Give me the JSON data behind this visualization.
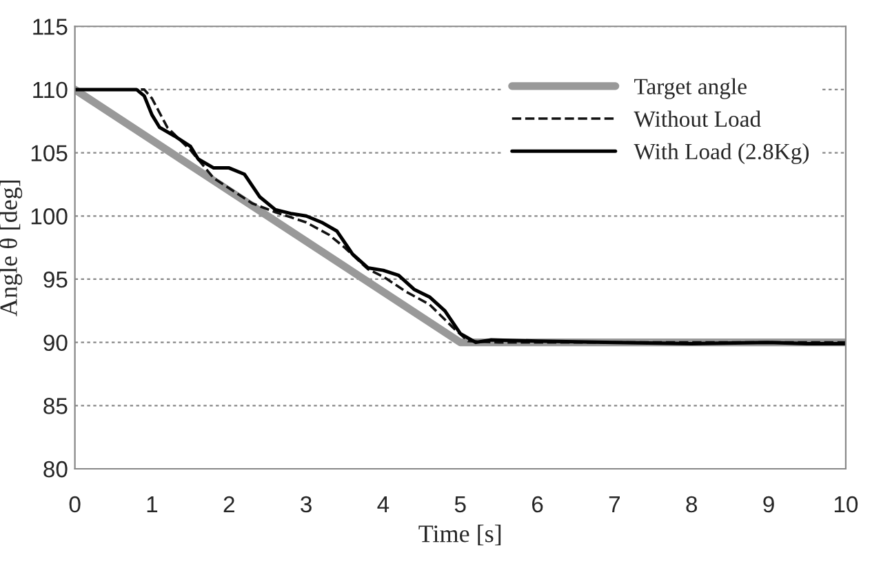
{
  "chart_data": {
    "type": "line",
    "xlabel": "Time [s]",
    "ylabel": "Angle θ [deg]",
    "xlim": [
      0,
      10
    ],
    "xticks": [
      0,
      1,
      2,
      3,
      4,
      5,
      6,
      7,
      8,
      9,
      10
    ],
    "ylim": [
      80,
      115
    ],
    "yticks": [
      80,
      85,
      90,
      95,
      100,
      105,
      110,
      115
    ],
    "grid": "y",
    "legend": "top right",
    "series": [
      {
        "name": "Target angle",
        "color": "#999999",
        "line_style": "solid",
        "x": [
          0,
          5,
          10
        ],
        "values": [
          110,
          90,
          90
        ]
      },
      {
        "name": "Without Load",
        "color": "#111111",
        "line_style": "dashed",
        "x": [
          0,
          0.9,
          1.0,
          1.2,
          1.5,
          1.8,
          2.0,
          2.3,
          2.6,
          3.0,
          3.3,
          3.5,
          3.8,
          4.0,
          4.3,
          4.6,
          4.9,
          5.1,
          5.5,
          10
        ],
        "values": [
          110,
          110,
          109.3,
          107,
          105.2,
          103,
          102.2,
          101,
          100.3,
          99.5,
          98.5,
          97.5,
          95.8,
          95.2,
          94,
          93,
          91.2,
          90.1,
          90,
          90
        ]
      },
      {
        "name": "With Load (2.8Kg)",
        "color": "#000000",
        "line_style": "solid",
        "x": [
          0,
          0.8,
          0.9,
          1.0,
          1.1,
          1.3,
          1.5,
          1.6,
          1.8,
          2.0,
          2.2,
          2.4,
          2.6,
          2.8,
          3.0,
          3.2,
          3.4,
          3.6,
          3.8,
          4.0,
          4.2,
          4.4,
          4.6,
          4.8,
          5.0,
          5.2,
          5.4,
          6,
          7,
          8,
          9,
          9.5,
          10
        ],
        "values": [
          110,
          110,
          109.5,
          108,
          107,
          106.3,
          105.5,
          104.5,
          103.8,
          103.8,
          103.3,
          101.5,
          100.5,
          100.2,
          100,
          99.5,
          98.8,
          97,
          95.9,
          95.7,
          95.3,
          94.2,
          93.6,
          92.5,
          90.7,
          90,
          90.2,
          90.1,
          90,
          89.9,
          90,
          89.9,
          89.9
        ]
      }
    ]
  }
}
